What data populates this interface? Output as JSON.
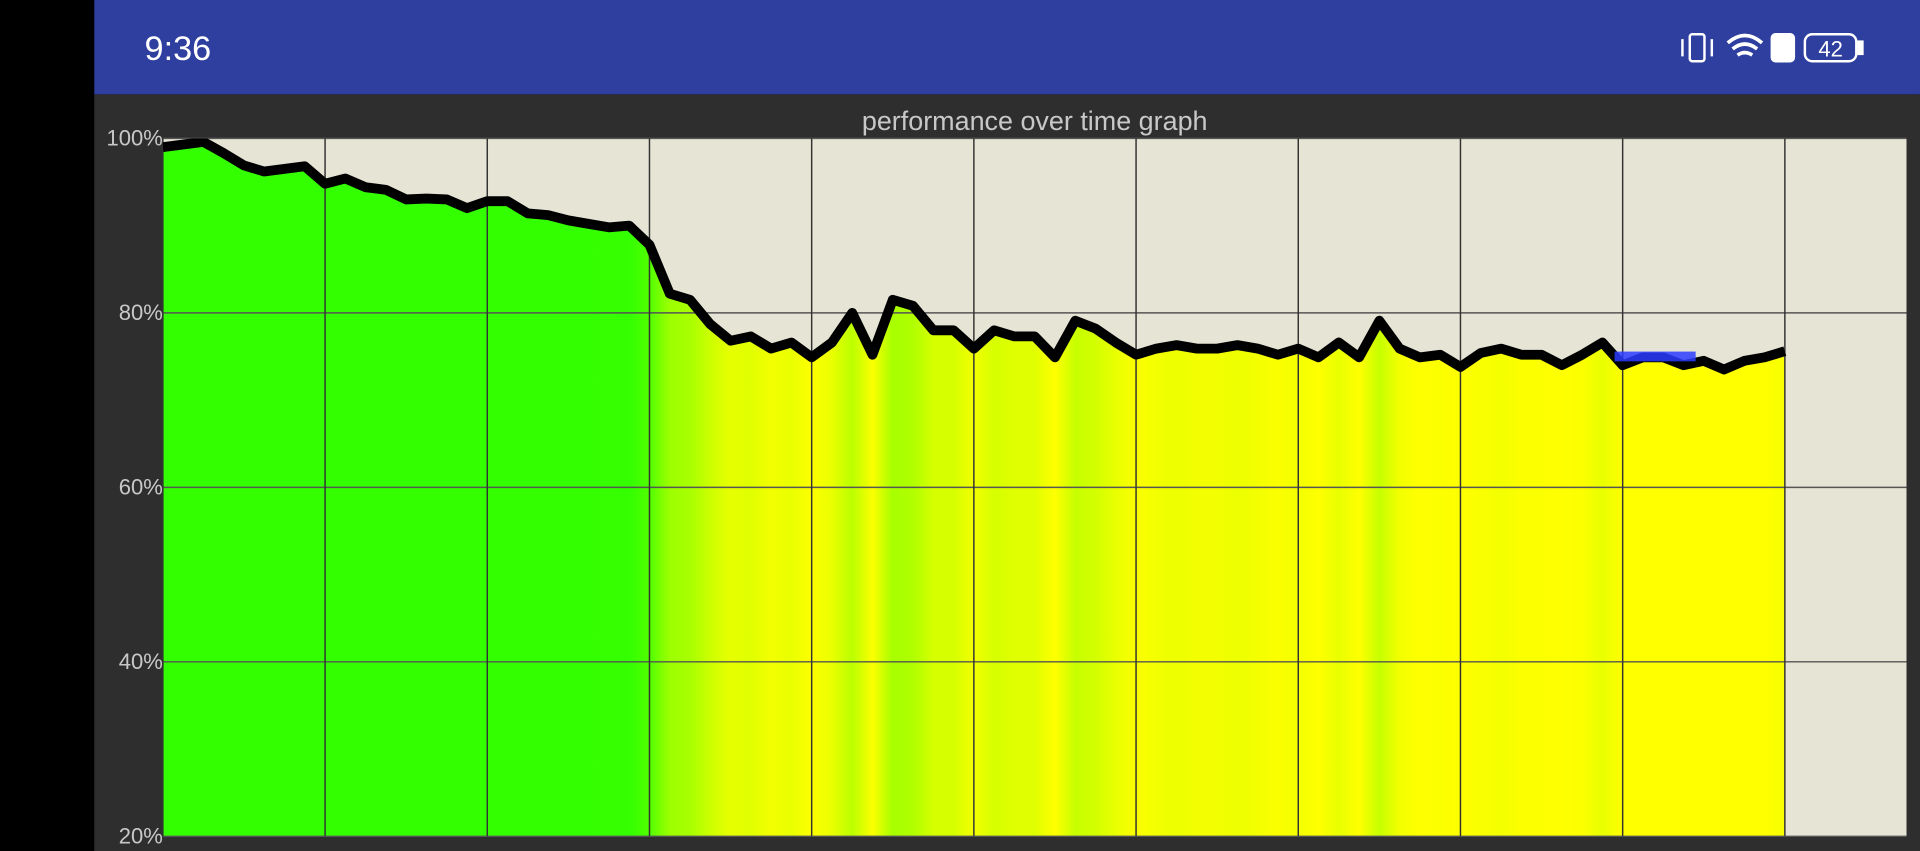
{
  "status_bar": {
    "time": "9:36",
    "battery": "42"
  },
  "chart_data": {
    "type": "area",
    "title": "performance over time graph",
    "x": [
      0,
      0.125,
      0.25,
      0.375,
      0.5,
      0.625,
      0.75,
      0.875,
      1,
      1.125,
      1.25,
      1.375,
      1.5,
      1.625,
      1.75,
      1.875,
      2,
      2.125,
      2.25,
      2.375,
      2.5,
      2.625,
      2.75,
      2.875,
      3,
      3.125,
      3.25,
      3.375,
      3.5,
      3.625,
      3.75,
      3.875,
      4,
      4.125,
      4.25,
      4.375,
      4.5,
      4.625,
      4.75,
      4.875,
      5,
      5.125,
      5.25,
      5.375,
      5.5,
      5.625,
      5.75,
      5.875,
      6,
      6.125,
      6.25,
      6.375,
      6.5,
      6.625,
      6.75,
      6.875,
      7,
      7.125,
      7.25,
      7.375,
      7.5,
      7.625,
      7.75,
      7.875,
      8,
      8.125,
      8.25,
      8.375,
      8.5,
      8.625,
      8.75,
      8.875,
      9,
      9.125,
      9.25,
      9.375,
      9.5,
      9.625,
      9.75,
      9.875,
      10
    ],
    "values": [
      99,
      99.3,
      99.6,
      98.3,
      96.9,
      96.2,
      96.5,
      96.8,
      94.8,
      95.4,
      94.4,
      94.1,
      93,
      93.1,
      93,
      92,
      92.8,
      92.8,
      91.4,
      91.2,
      90.6,
      90.2,
      89.8,
      90,
      87.8,
      82.2,
      81.5,
      78.7,
      76.8,
      77.3,
      75.9,
      76.6,
      74.9,
      76.6,
      80,
      75.2,
      81.5,
      80.8,
      78,
      78,
      75.9,
      78,
      77.3,
      77.3,
      74.9,
      79.1,
      78.2,
      76.6,
      75.2,
      75.9,
      76.3,
      75.9,
      75.9,
      76.3,
      75.9,
      75.2,
      75.9,
      74.9,
      76.6,
      74.9,
      79.1,
      75.9,
      74.9,
      75.2,
      73.8,
      75.4,
      75.9,
      75.2,
      75.2,
      74,
      75.2,
      76.6,
      74,
      74.9,
      74.9,
      74,
      74.5,
      73.5,
      74.5,
      74.9,
      75.6
    ],
    "color": "#000000",
    "fill_colors": [
      "#ffff00",
      "#33ff00"
    ],
    "highlight": {
      "x": [
        8.95,
        9.45
      ],
      "value": 75,
      "color": "#2a3cff"
    },
    "xlim": [
      0,
      10.75
    ],
    "xticks": [
      0,
      1,
      2,
      3,
      4,
      5,
      6,
      7,
      8,
      9,
      10
    ],
    "ylim": [
      20,
      100
    ],
    "yticks": [
      {
        "value": 20,
        "label": "20%"
      },
      {
        "value": 40,
        "label": "40%"
      },
      {
        "value": 60,
        "label": "60%"
      },
      {
        "value": 80,
        "label": "80%"
      },
      {
        "value": 100,
        "label": "100%"
      }
    ],
    "grid": true,
    "background": "#e6e4d4"
  }
}
